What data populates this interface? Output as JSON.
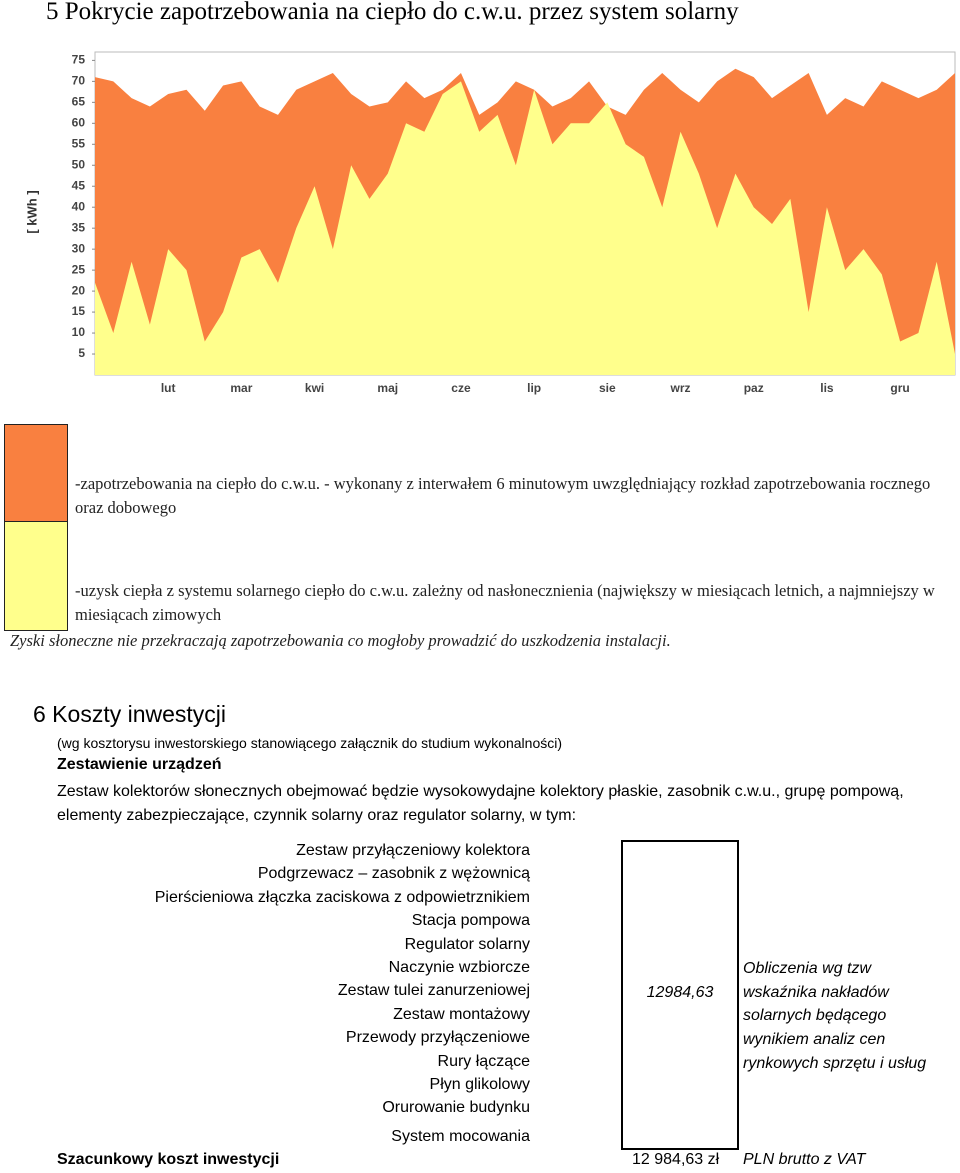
{
  "heading5": "5  Pokrycie zapotrzebowania na ciepło do c.w.u. przez system solarny",
  "chart_data": {
    "type": "area",
    "y_label": "[ kWh ]",
    "categories": [
      null,
      null,
      null,
      null,
      "lut",
      null,
      null,
      null,
      "mar",
      null,
      null,
      null,
      "kwi",
      null,
      null,
      null,
      "maj",
      null,
      null,
      null,
      "cze",
      null,
      null,
      null,
      "lip",
      null,
      null,
      null,
      "sie",
      null,
      null,
      null,
      "wrz",
      null,
      null,
      null,
      "paz",
      null,
      null,
      null,
      "lis",
      null,
      null,
      null,
      "gru",
      null,
      null,
      null
    ],
    "series": [
      {
        "name": "-zapotrzebowania na ciepło do c.w.u. - wykonany z interwałem 6 minutowym uwzględniający rozkład zapotrzebowania rocznego oraz dobowego",
        "color": "#f98040",
        "values": [
          71,
          70,
          66,
          64,
          67,
          68,
          63,
          69,
          70,
          64,
          62,
          68,
          70,
          72,
          67,
          64,
          65,
          70,
          66,
          68,
          72,
          62,
          65,
          70,
          68,
          64,
          66,
          70,
          64,
          62,
          68,
          72,
          68,
          65,
          70,
          73,
          71,
          66,
          69,
          72,
          62,
          66,
          64,
          70,
          68,
          66,
          68,
          72
        ]
      },
      {
        "name": "-uzysk ciepła z systemu solarnego ciepło do c.w.u. zależny od nasłonecznienia (największy w miesiącach letnich, a najmniejszy w miesiącach zimowych",
        "color": "#ffff8c",
        "values": [
          22,
          10,
          27,
          12,
          30,
          25,
          8,
          15,
          28,
          30,
          22,
          35,
          45,
          30,
          50,
          42,
          48,
          60,
          58,
          67,
          70,
          58,
          62,
          50,
          68,
          55,
          60,
          60,
          65,
          55,
          52,
          40,
          58,
          48,
          35,
          48,
          40,
          36,
          42,
          15,
          40,
          25,
          30,
          24,
          8,
          10,
          27,
          5
        ]
      }
    ],
    "ylim": [
      0,
      77
    ],
    "yticks": [
      5,
      10,
      15,
      20,
      25,
      30,
      35,
      40,
      45,
      50,
      55,
      60,
      65,
      70,
      75
    ]
  },
  "note": "Zyski słoneczne nie przekraczają zapotrzebowania co mogłoby prowadzić do uszkodzenia instalacji.",
  "section6": {
    "title": "6 Koszty inwestycji",
    "subtitle": "(wg kosztorysu inwestorskiego stanowiącego załącznik do studium wykonalności)",
    "heading": "Zestawienie urządzeń",
    "paragraph": "Zestaw kolektorów słonecznych obejmować będzie  wysokowydajne kolektory płaskie, zasobnik c.w.u., grupę pompową, elementy zabezpieczające, czynnik solarny oraz regulator solarny, w tym:",
    "items": [
      "Zestaw przyłączeniowy kolektora",
      "Podgrzewacz – zasobnik z wężownicą",
      "Pierścieniowa złączka zaciskowa z odpowietrznikiem",
      "Stacja pompowa",
      "Regulator solarny",
      "Naczynie wzbiorcze",
      "Zestaw tulei zanurzeniowej",
      "Zestaw montażowy",
      "Przewody przyłączeniowe",
      "Rury łączące",
      "Płyn glikolowy",
      "Orurowanie budynku",
      "System mocowania"
    ],
    "amount": "12984,63",
    "amount_note": "Obliczenia wg tzw wskaźnika nakładów solarnych będącego wynikiem analiz cen rynkowych sprzętu i usług",
    "total_label": "Szacunkowy koszt inwestycji",
    "total_amount": "12 984,63 zł",
    "total_unit": "PLN brutto z VAT"
  }
}
